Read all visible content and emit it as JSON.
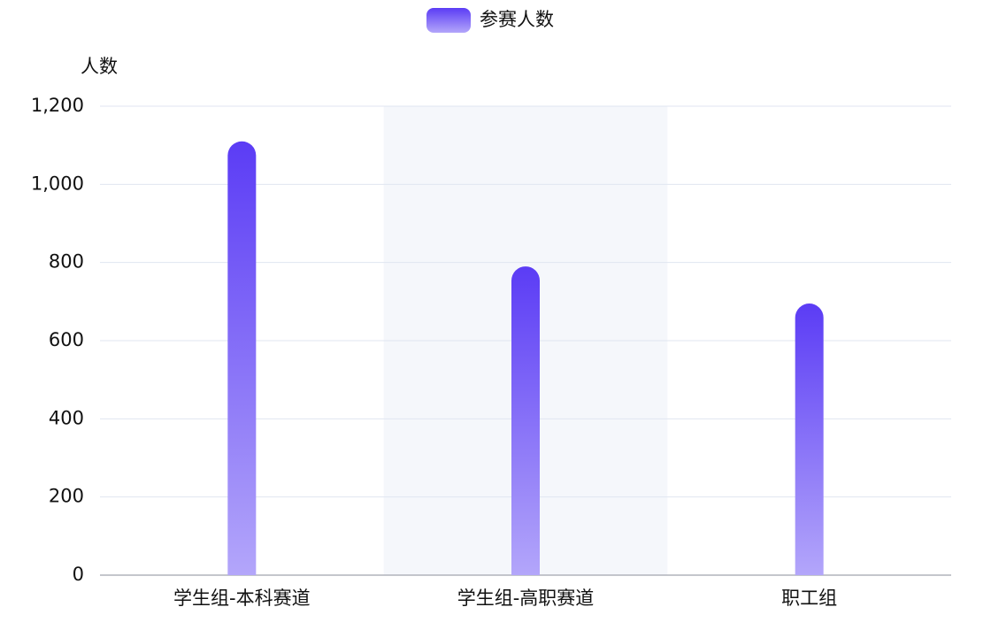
{
  "chart_data": {
    "type": "bar",
    "legend": "参赛人数",
    "y_axis_name": "人数",
    "categories": [
      "学生组-本科赛道",
      "学生组-高职赛道",
      "职工组"
    ],
    "series": [
      {
        "name": "参赛人数",
        "color": "#5b3cf5",
        "values": [
          1110,
          790,
          695
        ]
      }
    ],
    "ylim": [
      0,
      1200
    ],
    "yticks": [
      0,
      200,
      400,
      600,
      800,
      {
        "value": 1000,
        "label": "1,000"
      },
      {
        "value": 1200,
        "label": "1,200"
      }
    ],
    "grid": true
  }
}
